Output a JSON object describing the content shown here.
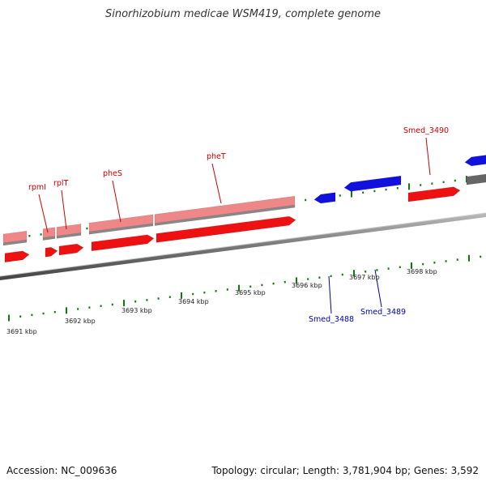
{
  "title": "Sinorhizobium medicae WSM419, complete genome",
  "footer": {
    "accession": "Accession: NC_009636",
    "stats": "Topology: circular; Length: 3,781,904 bp; Genes: 3,592"
  },
  "colors": {
    "forward_gene": "#ee1111",
    "forward_gene_light": "#ee8888",
    "reverse_gene": "#1111dd",
    "other_gene": "#666666",
    "backbone": "#777777",
    "ticks": "#117711",
    "forward_label": "#cc0000",
    "reverse_label": "#0000aa"
  },
  "ruler": {
    "labels": [
      "3691 kbp",
      "3692 kbp",
      "3693 kbp",
      "3694 kbp",
      "3695 kbp",
      "3696 kbp",
      "3697 kbp",
      "3698 kbp"
    ]
  },
  "genes": {
    "forward": [
      "rpmI",
      "rplT",
      "pheS",
      "pheT",
      "Smed_3490"
    ],
    "reverse": [
      "Smed_3488",
      "Smed_3489"
    ]
  }
}
